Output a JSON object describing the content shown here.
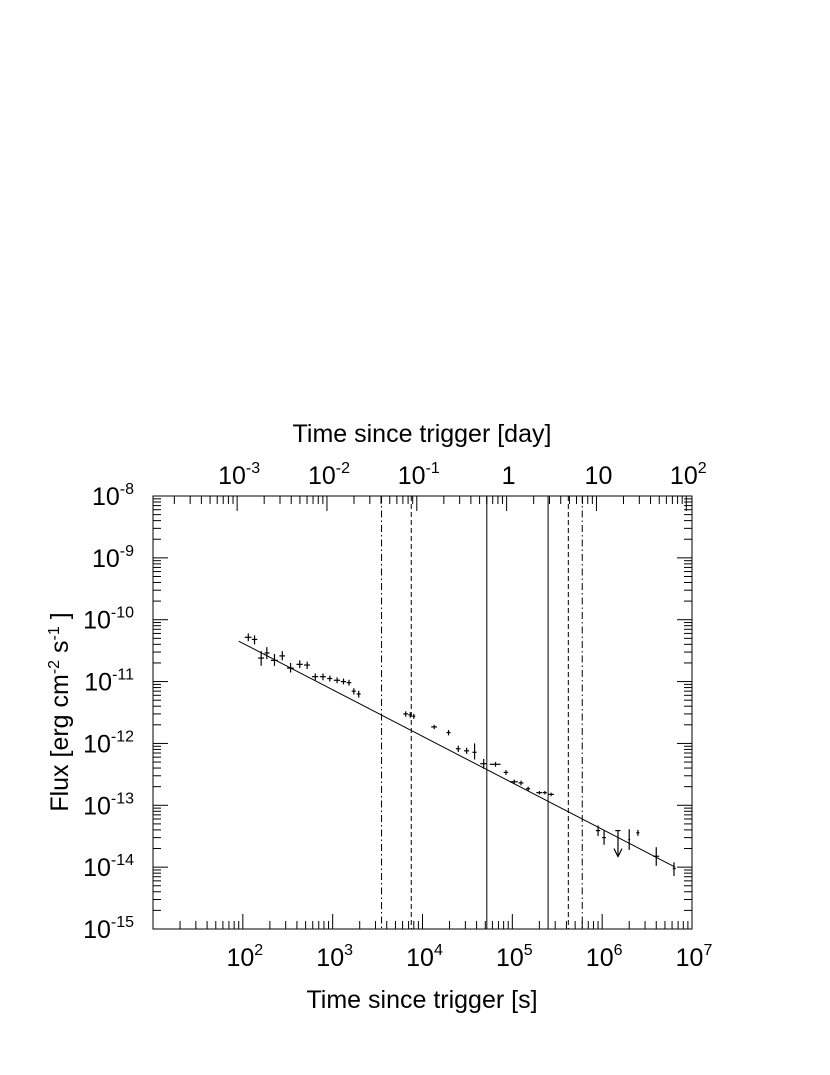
{
  "chart_data": {
    "type": "scatter",
    "xscale": "log",
    "yscale": "log",
    "xlabel": "Time since trigger [s]",
    "x2label": "Time since trigger [day]",
    "ylabel": "Flux [erg cm-2 s-1]",
    "xlim": [
      10,
      10000000
    ],
    "ylim": [
      1e-15,
      1e-08
    ],
    "grid": false,
    "x_ticks": [
      {
        "base": "10",
        "exp": "2",
        "value": 100
      },
      {
        "base": "10",
        "exp": "3",
        "value": 1000
      },
      {
        "base": "10",
        "exp": "4",
        "value": 10000
      },
      {
        "base": "10",
        "exp": "5",
        "value": 100000
      },
      {
        "base": "10",
        "exp": "6",
        "value": 1000000
      },
      {
        "base": "10",
        "exp": "7",
        "value": 10000000
      }
    ],
    "x2_ticks": [
      {
        "base": "10",
        "exp": "-3",
        "value": 0.001
      },
      {
        "base": "10",
        "exp": "-2",
        "value": 0.01
      },
      {
        "base": "10",
        "exp": "-1",
        "value": 0.1
      },
      {
        "base": "1",
        "exp": "",
        "value": 1
      },
      {
        "base": "10",
        "exp": "",
        "value": 10
      },
      {
        "base": "10",
        "exp": "2",
        "value": 100
      }
    ],
    "y_ticks": [
      {
        "base": "10",
        "exp": "-8",
        "value": 1e-08
      },
      {
        "base": "10",
        "exp": "-9",
        "value": 1e-09
      },
      {
        "base": "10",
        "exp": "-10",
        "value": 1e-10
      },
      {
        "base": "10",
        "exp": "-11",
        "value": 1e-11
      },
      {
        "base": "10",
        "exp": "-12",
        "value": 1e-12
      },
      {
        "base": "10",
        "exp": "-13",
        "value": 1e-13
      },
      {
        "base": "10",
        "exp": "-14",
        "value": 1e-14
      },
      {
        "base": "10",
        "exp": "-15",
        "value": 1e-15
      }
    ],
    "fit_line": {
      "x": [
        90,
        6500000
      ],
      "y": [
        4.5e-11,
        1e-14
      ]
    },
    "vertical_lines": [
      {
        "x": 3500,
        "style": "dashdot"
      },
      {
        "x": 7500,
        "style": "dashed"
      },
      {
        "x": 52000,
        "style": "solid"
      },
      {
        "x": 250000,
        "style": "solid"
      },
      {
        "x": 420000,
        "style": "dashed"
      },
      {
        "x": 600000,
        "style": "dashdot"
      }
    ],
    "points": [
      {
        "x": 115,
        "y": 5.2e-11,
        "xlo": 105,
        "xhi": 125,
        "ylo": 4.5e-11,
        "yhi": 6e-11
      },
      {
        "x": 135,
        "y": 4.8e-11,
        "xlo": 126,
        "xhi": 145,
        "ylo": 4e-11,
        "yhi": 5.6e-11
      },
      {
        "x": 160,
        "y": 2.4e-11,
        "xlo": 148,
        "xhi": 172,
        "ylo": 1.8e-11,
        "yhi": 3.1e-11
      },
      {
        "x": 185,
        "y": 2.9e-11,
        "xlo": 174,
        "xhi": 198,
        "ylo": 2.3e-11,
        "yhi": 3.6e-11
      },
      {
        "x": 225,
        "y": 2.2e-11,
        "xlo": 205,
        "xhi": 245,
        "ylo": 1.8e-11,
        "yhi": 2.8e-11
      },
      {
        "x": 275,
        "y": 2.6e-11,
        "xlo": 255,
        "xhi": 295,
        "ylo": 2.2e-11,
        "yhi": 3.1e-11
      },
      {
        "x": 340,
        "y": 1.65e-11,
        "xlo": 310,
        "xhi": 370,
        "ylo": 1.4e-11,
        "yhi": 2e-11
      },
      {
        "x": 430,
        "y": 1.9e-11,
        "xlo": 395,
        "xhi": 465,
        "ylo": 1.65e-11,
        "yhi": 2.2e-11
      },
      {
        "x": 520,
        "y": 1.85e-11,
        "xlo": 480,
        "xhi": 560,
        "ylo": 1.6e-11,
        "yhi": 2.1e-11
      },
      {
        "x": 640,
        "y": 1.2e-11,
        "xlo": 590,
        "xhi": 690,
        "ylo": 1.05e-11,
        "yhi": 1.35e-11
      },
      {
        "x": 780,
        "y": 1.2e-11,
        "xlo": 720,
        "xhi": 840,
        "ylo": 1.05e-11,
        "yhi": 1.35e-11
      },
      {
        "x": 930,
        "y": 1.12e-11,
        "xlo": 870,
        "xhi": 990,
        "ylo": 1e-11,
        "yhi": 1.25e-11
      },
      {
        "x": 1120,
        "y": 1.05e-11,
        "xlo": 1030,
        "xhi": 1210,
        "ylo": 9.4e-12,
        "yhi": 1.17e-11
      },
      {
        "x": 1320,
        "y": 1e-11,
        "xlo": 1230,
        "xhi": 1410,
        "ylo": 9e-12,
        "yhi": 1.12e-11
      },
      {
        "x": 1520,
        "y": 9.6e-12,
        "xlo": 1430,
        "xhi": 1610,
        "ylo": 8.6e-12,
        "yhi": 1.07e-11
      },
      {
        "x": 1720,
        "y": 7e-12,
        "xlo": 1630,
        "xhi": 1810,
        "ylo": 6.2e-12,
        "yhi": 7.8e-12
      },
      {
        "x": 1950,
        "y": 6.3e-12,
        "xlo": 1850,
        "xhi": 2050,
        "ylo": 5.5e-12,
        "yhi": 7.1e-12
      },
      {
        "x": 6500,
        "y": 3e-12,
        "xlo": 6100,
        "xhi": 6900,
        "ylo": 2.7e-12,
        "yhi": 3.3e-12
      },
      {
        "x": 7300,
        "y": 2.9e-12,
        "xlo": 6950,
        "xhi": 7650,
        "ylo": 2.6e-12,
        "yhi": 3.2e-12
      },
      {
        "x": 8000,
        "y": 2.75e-12,
        "xlo": 7700,
        "xhi": 8300,
        "ylo": 2.5e-12,
        "yhi": 3e-12
      },
      {
        "x": 13500,
        "y": 1.85e-12,
        "xlo": 12500,
        "xhi": 14500,
        "ylo": 1.7e-12,
        "yhi": 2e-12
      },
      {
        "x": 19500,
        "y": 1.5e-12,
        "xlo": 18500,
        "xhi": 20500,
        "ylo": 1.35e-12,
        "yhi": 1.65e-12
      },
      {
        "x": 25000,
        "y": 8.2e-13,
        "xlo": 23500,
        "xhi": 26500,
        "ylo": 7.3e-13,
        "yhi": 9.2e-13
      },
      {
        "x": 31000,
        "y": 7.6e-13,
        "xlo": 29000,
        "xhi": 33000,
        "ylo": 6.8e-13,
        "yhi": 8.5e-13
      },
      {
        "x": 38000,
        "y": 7.2e-13,
        "xlo": 36000,
        "xhi": 40000,
        "ylo": 5.5e-13,
        "yhi": 1e-12
      },
      {
        "x": 48000,
        "y": 4.7e-13,
        "xlo": 44000,
        "xhi": 52000,
        "ylo": 3.9e-13,
        "yhi": 5.6e-13
      },
      {
        "x": 65000,
        "y": 4.6e-13,
        "xlo": 56000,
        "xhi": 74000,
        "ylo": 4.2e-13,
        "yhi": 5e-13
      },
      {
        "x": 85000,
        "y": 3.4e-13,
        "xlo": 80000,
        "xhi": 90000,
        "ylo": 3.1e-13,
        "yhi": 3.7e-13
      },
      {
        "x": 105000,
        "y": 2.4e-13,
        "xlo": 95000,
        "xhi": 115000,
        "ylo": 2.2e-13,
        "yhi": 2.6e-13
      },
      {
        "x": 125000,
        "y": 2.3e-13,
        "xlo": 117000,
        "xhi": 133000,
        "ylo": 2.1e-13,
        "yhi": 2.5e-13
      },
      {
        "x": 150000,
        "y": 1.85e-13,
        "xlo": 142000,
        "xhi": 158000,
        "ylo": 1.7e-13,
        "yhi": 2e-13
      },
      {
        "x": 200000,
        "y": 1.6e-13,
        "xlo": 185000,
        "xhi": 215000,
        "ylo": 1.5e-13,
        "yhi": 1.7e-13
      },
      {
        "x": 230000,
        "y": 1.6e-13,
        "xlo": 218000,
        "xhi": 242000,
        "ylo": 1.5e-13,
        "yhi": 1.7e-13
      },
      {
        "x": 270000,
        "y": 1.5e-13,
        "xlo": 250000,
        "xhi": 290000,
        "ylo": 1.4e-13,
        "yhi": 1.6e-13
      },
      {
        "x": 900000,
        "y": 3.9e-14,
        "xlo": 850000,
        "xhi": 950000,
        "ylo": 3.2e-14,
        "yhi": 4.7e-14
      },
      {
        "x": 1050000,
        "y": 3e-14,
        "xlo": 1000000,
        "xhi": 1100000,
        "ylo": 2.3e-14,
        "yhi": 3.9e-14
      },
      {
        "x": 2000000,
        "y": 2.8e-14,
        "xlo": 1950000,
        "xhi": 2050000,
        "ylo": 1.9e-14,
        "yhi": 4.1e-14
      },
      {
        "x": 2500000,
        "y": 3.6e-14,
        "xlo": 2400000,
        "xhi": 2600000,
        "ylo": 3.2e-14,
        "yhi": 4e-14
      },
      {
        "x": 4000000,
        "y": 1.5e-14,
        "xlo": 3700000,
        "xhi": 4300000,
        "ylo": 1.05e-14,
        "yhi": 2.1e-14
      },
      {
        "x": 6300000,
        "y": 9.5e-15,
        "xlo": 6100000,
        "xhi": 6600000,
        "ylo": 7.2e-15,
        "yhi": 1.2e-14
      }
    ],
    "upper_limits": [
      {
        "x": 1500000,
        "y": 3.9e-14,
        "xlo": 1400000,
        "xhi": 1600000
      }
    ]
  }
}
